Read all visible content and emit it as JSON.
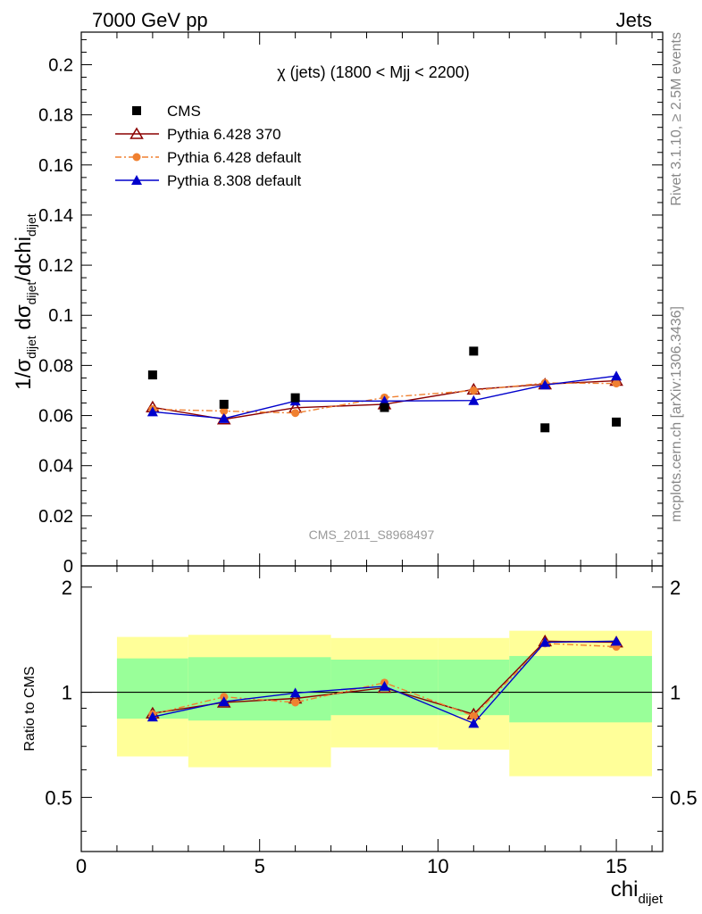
{
  "header": {
    "left": "7000 GeV pp",
    "right": "Jets"
  },
  "side_text": {
    "rivet": "Rivet 3.1.10, ≥ 2.5M events",
    "mcplots": "mcplots.cern.ch [arXiv:1306.3436]"
  },
  "chart_data": [
    {
      "type": "scatter",
      "panel": "main",
      "title": "χ (jets) (1800 < Mjj < 2200)",
      "ylabel": "1/σ_dijet dσ_dijet/dchi_dijet",
      "ylim": [
        0,
        0.213
      ],
      "xlim": [
        0,
        16.3
      ],
      "yticks": [
        "0",
        "0.02",
        "0.04",
        "0.06",
        "0.08",
        "0.1",
        "0.12",
        "0.14",
        "0.16",
        "0.18",
        "0.2"
      ],
      "watermark": "CMS_2011_S8968497",
      "legend_position": "top-left",
      "x": [
        2,
        4,
        6,
        8.5,
        11,
        13,
        15
      ],
      "series": [
        {
          "name": "CMS",
          "color": "#000000",
          "marker": "square",
          "line": "none",
          "values": [
            0.0762,
            0.0645,
            0.0671,
            0.0632,
            0.0857,
            0.0551,
            0.0574
          ]
        },
        {
          "name": "Pythia 6.428 370",
          "color": "#8b0000",
          "marker": "open-triangle",
          "line": "solid",
          "values": [
            0.0633,
            0.0585,
            0.0631,
            0.0645,
            0.0704,
            0.0725,
            0.0739
          ]
        },
        {
          "name": "Pythia 6.428 default",
          "color": "#f08030",
          "marker": "circle",
          "line": "dashdot",
          "values": [
            0.0625,
            0.0618,
            0.061,
            0.0672,
            0.07,
            0.073,
            0.0728
          ]
        },
        {
          "name": "Pythia 8.308 default",
          "color": "#0000cc",
          "marker": "triangle",
          "line": "solid",
          "values": [
            0.0615,
            0.0588,
            0.0658,
            0.0658,
            0.066,
            0.0722,
            0.0758
          ]
        }
      ]
    },
    {
      "type": "line",
      "panel": "ratio",
      "ylabel": "Ratio to CMS",
      "ylim": [
        0.35,
        2.3
      ],
      "xlim": [
        0,
        16.3
      ],
      "xlabel": "chi_dijet",
      "xticks": [
        "0",
        "5",
        "10",
        "15"
      ],
      "yticks": [
        "0.5",
        "1",
        "2"
      ],
      "bands": {
        "edges": [
          1,
          3,
          7,
          10,
          12,
          16
        ],
        "yellow": [
          [
            0.655,
            1.44
          ],
          [
            0.61,
            1.46
          ],
          [
            0.695,
            1.43
          ],
          [
            0.685,
            1.43
          ],
          [
            0.575,
            1.5
          ]
        ],
        "green": [
          [
            0.84,
            1.25
          ],
          [
            0.83,
            1.26
          ],
          [
            0.86,
            1.24
          ],
          [
            0.86,
            1.24
          ],
          [
            0.82,
            1.27
          ]
        ]
      },
      "x": [
        2,
        4,
        6,
        8.5,
        11,
        13,
        15
      ],
      "series": [
        {
          "name": "Pythia 6.428 370",
          "color": "#8b0000",
          "marker": "open-triangle",
          "line": "solid",
          "values": [
            0.87,
            0.935,
            0.96,
            1.03,
            0.865,
            1.4,
            1.39
          ]
        },
        {
          "name": "Pythia 6.428 default",
          "color": "#f08030",
          "marker": "circle",
          "line": "dashdot",
          "values": [
            0.865,
            0.97,
            0.935,
            1.065,
            0.855,
            1.38,
            1.35
          ]
        },
        {
          "name": "Pythia 8.308 default",
          "color": "#0000cc",
          "marker": "triangle",
          "line": "solid",
          "values": [
            0.85,
            0.94,
            0.995,
            1.04,
            0.815,
            1.39,
            1.4
          ]
        }
      ]
    }
  ]
}
